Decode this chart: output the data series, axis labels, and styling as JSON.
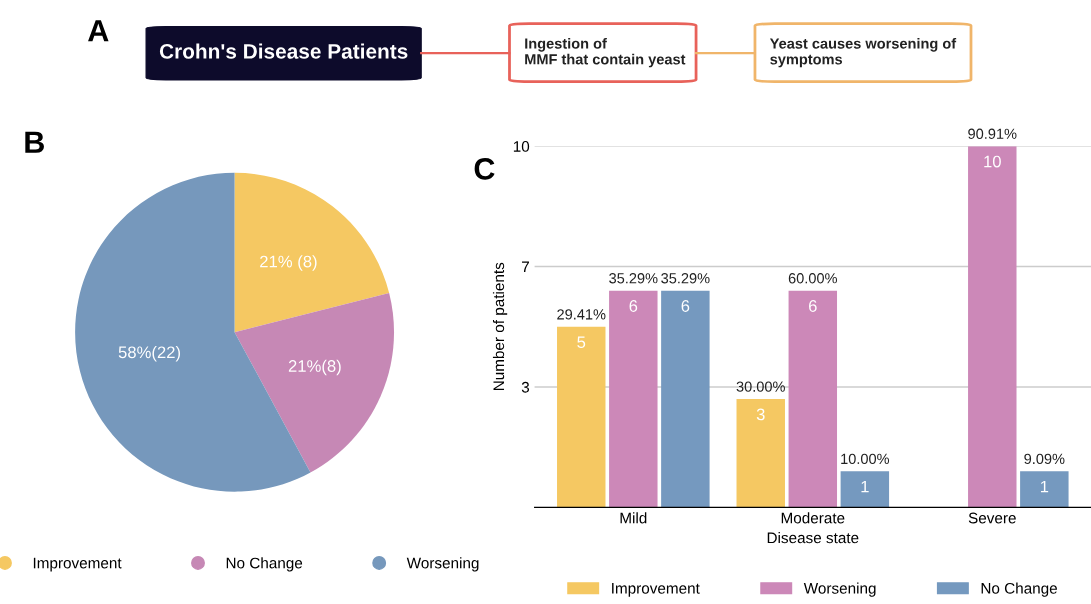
{
  "chart_data": [
    {
      "type": "other",
      "title": "A",
      "annotations": [
        "Crohn's Disease Patients",
        "Ingestion of\nMMF that contain yeast",
        "Yeast causes worsening of\nsymptoms"
      ],
      "colors": [
        "#0d0b2b",
        "#e8625a",
        "#f0b56a"
      ]
    },
    {
      "type": "pie",
      "title": "B",
      "categories": [
        "Improvement",
        "No Change",
        "Worsening"
      ],
      "values": [
        8,
        8,
        22
      ],
      "colors": [
        "#f5c862",
        "#c688b5",
        "#7698bc"
      ],
      "value_labels": [
        "21% (8)",
        "21%(8)",
        "58%(22)"
      ],
      "legend": "bottom"
    },
    {
      "type": "bar",
      "title": "C",
      "xlabel": "Disease state",
      "ylabel": "Number of patients",
      "categories": [
        "Mild",
        "Moderate",
        "Severe"
      ],
      "ylim": [
        0,
        10
      ],
      "yticks": [
        {
          "value": 3.333,
          "label": "3"
        },
        {
          "value": 6.667,
          "label": "7"
        },
        10
      ],
      "grid": "y",
      "legend": "bottom",
      "data_labels": true,
      "annotations": [
        "29.41%",
        "35.29%",
        "35.29%",
        "30.00%",
        "60.00%",
        "10.00%",
        "90.91%",
        "9.09%"
      ],
      "series": [
        {
          "name": "Improvement",
          "color": "#f5c862",
          "values": [
            5,
            3,
            null
          ]
        },
        {
          "name": "Worsening",
          "color": "#cc88b8",
          "values": [
            6,
            6,
            10
          ]
        },
        {
          "name": "No Change",
          "color": "#7599bf",
          "values": [
            6,
            1,
            1
          ]
        }
      ]
    }
  ]
}
